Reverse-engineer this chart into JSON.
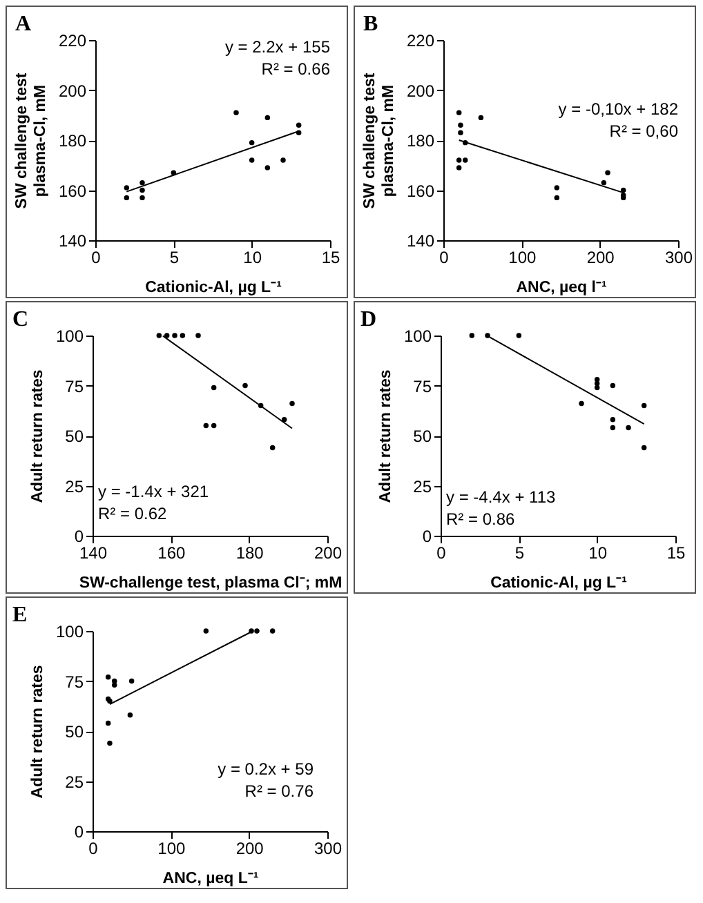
{
  "chart_data": [
    {
      "type": "scatter",
      "title": "A",
      "xlabel": "Cationic-Al, µg L⁻¹",
      "ylabel": "SW challenge test\nplasma-Cl, mM",
      "xlim": [
        0,
        15
      ],
      "xticks": [
        0,
        5,
        10,
        15
      ],
      "ylim": [
        140,
        220
      ],
      "yticks": [
        140,
        160,
        180,
        200,
        220
      ],
      "annotations": [
        "y = 2.2x + 155",
        "R² = 0.66"
      ],
      "series": [
        {
          "color": "#000000",
          "marker": "circle",
          "x": [
            2,
            2,
            3,
            3,
            3,
            5,
            9,
            10,
            10,
            11,
            11,
            12,
            13,
            13
          ],
          "values": [
            161,
            157,
            163,
            160,
            157,
            167,
            191,
            179,
            172,
            189,
            169,
            172,
            186,
            183
          ]
        },
        {
          "type": "line",
          "color": "#000000",
          "x": [
            2,
            13
          ],
          "values": [
            159.4,
            183.6
          ]
        }
      ]
    },
    {
      "type": "scatter",
      "title": "B",
      "xlabel": "ANC, µeq l⁻¹",
      "ylabel": "SW challenge test\nplasma-Cl, mM",
      "xlim": [
        0,
        300
      ],
      "xticks": [
        0,
        100,
        200,
        300
      ],
      "ylim": [
        140,
        220
      ],
      "yticks": [
        140,
        160,
        180,
        200,
        220
      ],
      "annotations": [
        "y = -0,10x + 182",
        "R² = 0,60"
      ],
      "series": [
        {
          "color": "#000000",
          "marker": "circle",
          "x": [
            20,
            20,
            20,
            22,
            22,
            28,
            28,
            48,
            145,
            145,
            205,
            210,
            230,
            230,
            230
          ],
          "values": [
            191,
            172,
            169,
            186,
            183,
            179,
            172,
            189,
            161,
            157,
            163,
            167,
            160,
            158,
            157
          ]
        },
        {
          "type": "line",
          "color": "#000000",
          "x": [
            20,
            230
          ],
          "values": [
            180,
            159
          ]
        }
      ]
    },
    {
      "type": "scatter",
      "title": "C",
      "xlabel": "SW-challenge test, plasma Cl⁻; mM",
      "ylabel": "Adult return rates",
      "xlim": [
        140,
        200
      ],
      "xticks": [
        140,
        160,
        180,
        200
      ],
      "ylim": [
        0,
        100
      ],
      "yticks": [
        0,
        25,
        50,
        75,
        100
      ],
      "annotations": [
        "y = -1.4x + 321",
        "R² = 0.62"
      ],
      "series": [
        {
          "color": "#000000",
          "marker": "circle",
          "x": [
            157,
            159,
            161,
            163,
            167,
            169,
            171,
            171,
            179,
            183,
            186,
            189,
            191
          ],
          "values": [
            100,
            100,
            100,
            100,
            100,
            55,
            74,
            55,
            75,
            65,
            44,
            58,
            66
          ]
        },
        {
          "type": "line",
          "color": "#000000",
          "x": [
            158,
            191
          ],
          "values": [
            99.8,
            53.6
          ]
        }
      ]
    },
    {
      "type": "scatter",
      "title": "D",
      "xlabel": "Cationic-Al, µg L⁻¹",
      "ylabel": "Adult return rates",
      "xlim": [
        0,
        15
      ],
      "xticks": [
        0,
        5,
        10,
        15
      ],
      "ylim": [
        0,
        100
      ],
      "yticks": [
        0,
        25,
        50,
        75,
        100
      ],
      "annotations": [
        "y = -4.4x + 113",
        "R² = 0.86"
      ],
      "series": [
        {
          "color": "#000000",
          "marker": "circle",
          "x": [
            2,
            3,
            5,
            9,
            10,
            10,
            10,
            11,
            11,
            11,
            12,
            13,
            13
          ],
          "values": [
            100,
            100,
            100,
            66,
            78,
            76,
            74,
            75,
            58,
            54,
            54,
            65,
            44
          ]
        },
        {
          "type": "line",
          "color": "#000000",
          "x": [
            3,
            13
          ],
          "values": [
            99.8,
            55.8
          ]
        }
      ]
    },
    {
      "type": "scatter",
      "title": "E",
      "xlabel": "ANC, µeq L⁻¹",
      "ylabel": "Adult return rates",
      "xlim": [
        0,
        300
      ],
      "xticks": [
        0,
        100,
        200,
        300
      ],
      "ylim": [
        0,
        100
      ],
      "yticks": [
        0,
        25,
        50,
        75,
        100
      ],
      "annotations": [
        "y = 0.2x + 59",
        "R² = 0.76"
      ],
      "series": [
        {
          "color": "#000000",
          "marker": "circle",
          "x": [
            20,
            20,
            20,
            22,
            22,
            28,
            28,
            48,
            50,
            145,
            203,
            210,
            230
          ],
          "values": [
            77,
            66,
            54,
            65,
            44,
            75,
            73,
            58,
            75,
            100,
            100,
            100,
            100
          ]
        },
        {
          "type": "line",
          "color": "#000000",
          "x": [
            22,
            205
          ],
          "values": [
            63.4,
            100
          ]
        }
      ]
    }
  ]
}
